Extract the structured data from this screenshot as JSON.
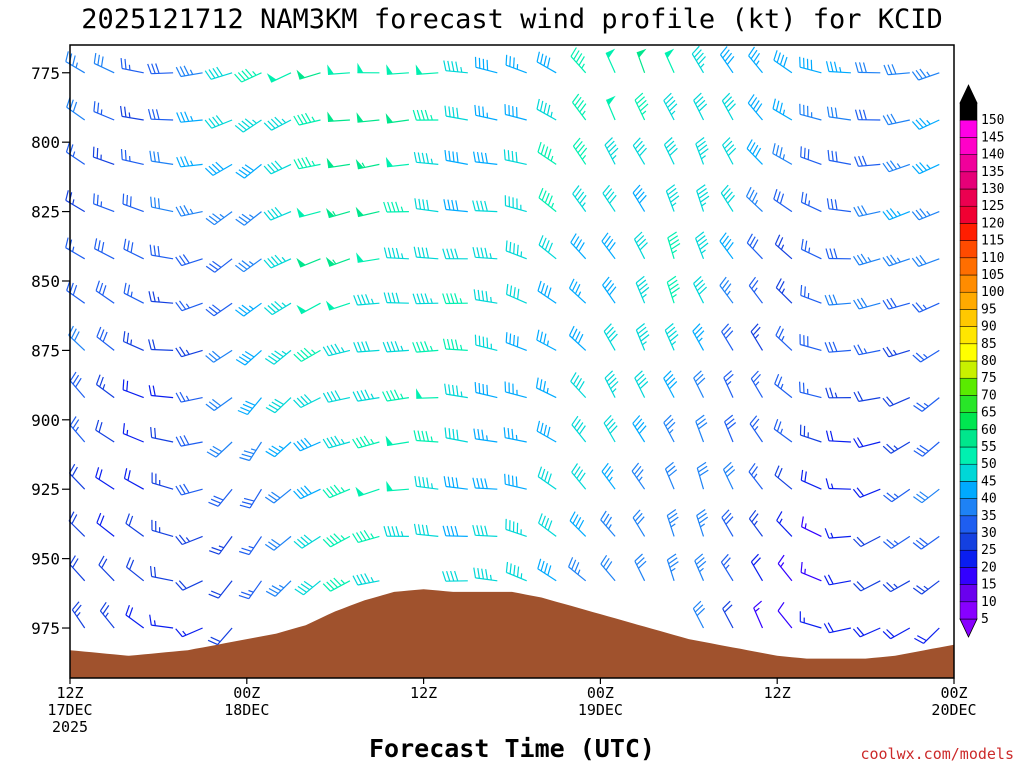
{
  "chart_data": {
    "type": "wind_barb_time_height",
    "title": "2025121712 NAM3KM forecast wind profile (kt) for KCID",
    "xlabel": "Forecast Time (UTC)",
    "ylabel": "",
    "credit": "coolwx.com/models",
    "x_hours_range": [
      0,
      60
    ],
    "y_pressure_range": [
      765,
      993
    ],
    "y_ticks": [
      {
        "value": 775,
        "label": "775"
      },
      {
        "value": 800,
        "label": "800"
      },
      {
        "value": 825,
        "label": "825"
      },
      {
        "value": 850,
        "label": "850"
      },
      {
        "value": 875,
        "label": "875"
      },
      {
        "value": 900,
        "label": "900"
      },
      {
        "value": 925,
        "label": "925"
      },
      {
        "value": 950,
        "label": "950"
      },
      {
        "value": 975,
        "label": "975"
      }
    ],
    "x_ticks": [
      {
        "hour": 0,
        "lines": [
          "12Z",
          "17DEC",
          "2025"
        ]
      },
      {
        "hour": 12,
        "lines": [
          "00Z",
          "18DEC"
        ]
      },
      {
        "hour": 24,
        "lines": [
          "12Z"
        ]
      },
      {
        "hour": 36,
        "lines": [
          "00Z",
          "19DEC"
        ]
      },
      {
        "hour": 48,
        "lines": [
          "12Z"
        ]
      },
      {
        "hour": 60,
        "lines": [
          "00Z",
          "20DEC"
        ]
      }
    ],
    "colorbar": {
      "levels": [
        5,
        10,
        15,
        20,
        25,
        30,
        35,
        40,
        45,
        50,
        55,
        60,
        65,
        70,
        75,
        80,
        85,
        90,
        95,
        100,
        105,
        110,
        115,
        120,
        125,
        130,
        135,
        140,
        145,
        150
      ],
      "colors": [
        "#8800ff",
        "#6a00ee",
        "#3300ff",
        "#0a1ef0",
        "#1440e0",
        "#1e5ef0",
        "#1e82f5",
        "#00aaff",
        "#00d7d7",
        "#00f0b0",
        "#00e68c",
        "#00e650",
        "#28e628",
        "#5aeb00",
        "#c8f000",
        "#ffff00",
        "#ffe600",
        "#ffc800",
        "#ffaa00",
        "#ff8c00",
        "#ff6e00",
        "#ff4b00",
        "#ff1e00",
        "#f00032",
        "#eb0050",
        "#e60078",
        "#f0009b",
        "#ff00c8",
        "#ff00e6",
        "#000000"
      ]
    },
    "surface_pressure_by_hour": [
      {
        "hour": 0,
        "hPa": 983
      },
      {
        "hour": 2,
        "hPa": 984
      },
      {
        "hour": 4,
        "hPa": 985
      },
      {
        "hour": 6,
        "hPa": 984
      },
      {
        "hour": 8,
        "hPa": 983
      },
      {
        "hour": 10,
        "hPa": 981
      },
      {
        "hour": 12,
        "hPa": 979
      },
      {
        "hour": 14,
        "hPa": 977
      },
      {
        "hour": 16,
        "hPa": 974
      },
      {
        "hour": 18,
        "hPa": 969
      },
      {
        "hour": 20,
        "hPa": 965
      },
      {
        "hour": 22,
        "hPa": 962
      },
      {
        "hour": 24,
        "hPa": 961
      },
      {
        "hour": 26,
        "hPa": 962
      },
      {
        "hour": 28,
        "hPa": 962
      },
      {
        "hour": 30,
        "hPa": 962
      },
      {
        "hour": 32,
        "hPa": 964
      },
      {
        "hour": 34,
        "hPa": 967
      },
      {
        "hour": 36,
        "hPa": 970
      },
      {
        "hour": 38,
        "hPa": 973
      },
      {
        "hour": 40,
        "hPa": 976
      },
      {
        "hour": 42,
        "hPa": 979
      },
      {
        "hour": 44,
        "hPa": 981
      },
      {
        "hour": 46,
        "hPa": 983
      },
      {
        "hour": 48,
        "hPa": 985
      },
      {
        "hour": 50,
        "hPa": 986
      },
      {
        "hour": 52,
        "hPa": 986
      },
      {
        "hour": 54,
        "hPa": 986
      },
      {
        "hour": 56,
        "hPa": 985
      },
      {
        "hour": 58,
        "hPa": 983
      },
      {
        "hour": 60,
        "hPa": 981
      }
    ],
    "barb_levels_hPa": [
      775,
      792,
      808,
      825,
      842,
      858,
      875,
      892,
      908,
      925,
      942,
      958,
      975
    ],
    "barb_hour_step": 2,
    "wind_keyframes": [
      {
        "hour": 0,
        "dir_top": 300,
        "dir_bottom": 330,
        "spd_top": 30,
        "spd_bottom": 25
      },
      {
        "hour": 6,
        "dir_top": 280,
        "dir_bottom": 300,
        "spd_top": 30,
        "spd_bottom": 15
      },
      {
        "hour": 12,
        "dir_top": 240,
        "dir_bottom": 200,
        "spd_top": 40,
        "spd_bottom": 25
      },
      {
        "hour": 18,
        "dir_top": 260,
        "dir_bottom": 240,
        "spd_top": 55,
        "spd_bottom": 40
      },
      {
        "hour": 24,
        "dir_top": 270,
        "dir_bottom": 270,
        "spd_top": 45,
        "spd_bottom": 45
      },
      {
        "hour": 30,
        "dir_top": 280,
        "dir_bottom": 280,
        "spd_top": 40,
        "spd_bottom": 40
      },
      {
        "hour": 36,
        "dir_top": 330,
        "dir_bottom": 320,
        "spd_top": 45,
        "spd_bottom": 35
      },
      {
        "hour": 42,
        "dir_top": 340,
        "dir_bottom": 340,
        "spd_top": 50,
        "spd_bottom": 30
      },
      {
        "hour": 48,
        "dir_top": 310,
        "dir_bottom": 330,
        "spd_top": 35,
        "spd_bottom": 15
      },
      {
        "hour": 54,
        "dir_top": 270,
        "dir_bottom": 250,
        "spd_top": 35,
        "spd_bottom": 15
      },
      {
        "hour": 60,
        "dir_top": 250,
        "dir_bottom": 220,
        "spd_top": 35,
        "spd_bottom": 25
      }
    ]
  }
}
